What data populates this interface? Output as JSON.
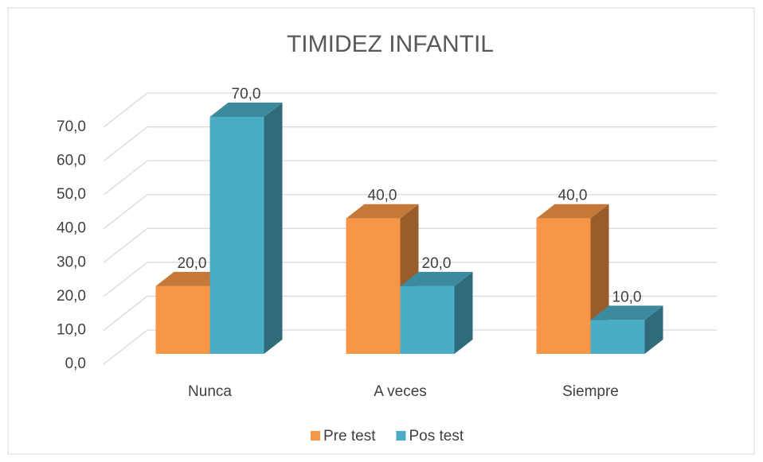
{
  "chart_data": {
    "type": "bar3d",
    "title": "TIMIDEZ INFANTIL",
    "categories": [
      "Nunca",
      "A veces",
      "Siempre"
    ],
    "series": [
      {
        "name": "Pre test",
        "color": "#F79646",
        "values": [
          20,
          40,
          40
        ],
        "value_labels": [
          "20,0",
          "40,0",
          "40,0"
        ]
      },
      {
        "name": "Pos test",
        "color": "#4BACC6",
        "values": [
          70,
          20,
          10
        ],
        "value_labels": [
          "70,0",
          "20,0",
          "10,0"
        ]
      }
    ],
    "ylim": [
      0,
      70
    ],
    "yticks": [
      {
        "value": 0,
        "label": "0,0"
      },
      {
        "value": 10,
        "label": "10,0"
      },
      {
        "value": 20,
        "label": "20,0"
      },
      {
        "value": 30,
        "label": "30,0"
      },
      {
        "value": 40,
        "label": "40,0"
      },
      {
        "value": 50,
        "label": "50,0"
      },
      {
        "value": 60,
        "label": "60,0"
      },
      {
        "value": 70,
        "label": "70,0"
      }
    ],
    "grid": true,
    "legend": "bottom"
  }
}
